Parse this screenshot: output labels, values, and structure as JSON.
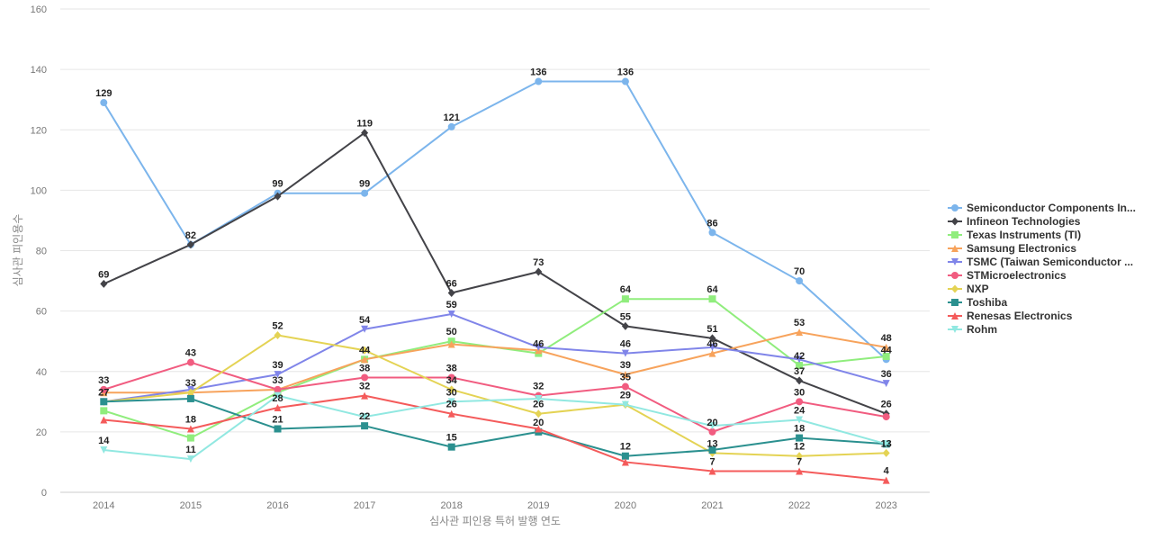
{
  "chart_data": {
    "type": "line",
    "title": "",
    "xlabel": "심사관 피인용 특허 발행 연도",
    "ylabel": "심사관 피인용수",
    "x": [
      "2014",
      "2015",
      "2016",
      "2017",
      "2018",
      "2019",
      "2020",
      "2021",
      "2022",
      "2023"
    ],
    "ylim": [
      0,
      160
    ],
    "yticks": [
      0,
      20,
      40,
      60,
      80,
      100,
      120,
      140,
      160
    ],
    "grid": true,
    "legend_position": "right",
    "series": [
      {
        "name": "Semiconductor Components In...",
        "color": "#7cb5ec",
        "marker": "circle",
        "values": [
          129,
          82,
          99,
          99,
          121,
          136,
          136,
          86,
          70,
          44
        ]
      },
      {
        "name": "Infineon Technologies",
        "color": "#434348",
        "marker": "diamond",
        "values": [
          69,
          82,
          98,
          119,
          66,
          73,
          55,
          51,
          37,
          26
        ]
      },
      {
        "name": "Texas Instruments (TI)",
        "color": "#90ed7d",
        "marker": "square",
        "values": [
          27,
          18,
          33,
          44,
          50,
          46,
          64,
          64,
          42,
          45
        ]
      },
      {
        "name": "Samsung Electronics",
        "color": "#f7a35c",
        "marker": "triangle",
        "values": [
          33,
          33,
          34,
          44,
          49,
          47,
          39,
          46,
          53,
          48
        ]
      },
      {
        "name": "TSMC (Taiwan Semiconductor ...",
        "color": "#8085e9",
        "marker": "triangle-down",
        "values": [
          30,
          34,
          39,
          54,
          59,
          48,
          46,
          48,
          44,
          36
        ]
      },
      {
        "name": "STMicroelectronics",
        "color": "#f15c80",
        "marker": "circle",
        "values": [
          34,
          43,
          34,
          38,
          38,
          32,
          35,
          20,
          30,
          25
        ]
      },
      {
        "name": "NXP",
        "color": "#e4d354",
        "marker": "diamond",
        "values": [
          30,
          33,
          52,
          47,
          34,
          26,
          29,
          13,
          12,
          13
        ]
      },
      {
        "name": "Toshiba",
        "color": "#2b908f",
        "marker": "square",
        "values": [
          30,
          31,
          21,
          22,
          15,
          20,
          12,
          14,
          18,
          16
        ]
      },
      {
        "name": "Renesas Electronics",
        "color": "#f45b5b",
        "marker": "triangle",
        "values": [
          24,
          21,
          28,
          32,
          26,
          21,
          10,
          7,
          7,
          4
        ]
      },
      {
        "name": "Rohm",
        "color": "#91e8e1",
        "marker": "triangle-down",
        "values": [
          14,
          11,
          32,
          25,
          30,
          31,
          29,
          22,
          24,
          16
        ]
      }
    ],
    "data_labels": [
      {
        "x": "2014",
        "y": 129,
        "text": "129"
      },
      {
        "x": "2014",
        "y": 69,
        "text": "69"
      },
      {
        "x": "2014",
        "y": 34,
        "text": "33"
      },
      {
        "x": "2014",
        "y": 30,
        "text": "27"
      },
      {
        "x": "2014",
        "y": 14,
        "text": "14"
      },
      {
        "x": "2015",
        "y": 82,
        "text": "82"
      },
      {
        "x": "2015",
        "y": 43,
        "text": "43"
      },
      {
        "x": "2015",
        "y": 33,
        "text": "33"
      },
      {
        "x": "2015",
        "y": 21,
        "text": "18"
      },
      {
        "x": "2015",
        "y": 11,
        "text": "11"
      },
      {
        "x": "2016",
        "y": 99,
        "text": "99"
      },
      {
        "x": "2016",
        "y": 52,
        "text": "52"
      },
      {
        "x": "2016",
        "y": 39,
        "text": "39"
      },
      {
        "x": "2016",
        "y": 34,
        "text": "33"
      },
      {
        "x": "2016",
        "y": 28,
        "text": "28"
      },
      {
        "x": "2016",
        "y": 21,
        "text": "21"
      },
      {
        "x": "2017",
        "y": 119,
        "text": "119"
      },
      {
        "x": "2017",
        "y": 99,
        "text": "99"
      },
      {
        "x": "2017",
        "y": 54,
        "text": "54"
      },
      {
        "x": "2017",
        "y": 44,
        "text": "44"
      },
      {
        "x": "2017",
        "y": 38,
        "text": "38"
      },
      {
        "x": "2017",
        "y": 32,
        "text": "32"
      },
      {
        "x": "2017",
        "y": 22,
        "text": "22"
      },
      {
        "x": "2018",
        "y": 121,
        "text": "121"
      },
      {
        "x": "2018",
        "y": 66,
        "text": "66"
      },
      {
        "x": "2018",
        "y": 59,
        "text": "59"
      },
      {
        "x": "2018",
        "y": 50,
        "text": "50"
      },
      {
        "x": "2018",
        "y": 38,
        "text": "38"
      },
      {
        "x": "2018",
        "y": 34,
        "text": "34"
      },
      {
        "x": "2018",
        "y": 30,
        "text": "30"
      },
      {
        "x": "2018",
        "y": 26,
        "text": "26"
      },
      {
        "x": "2018",
        "y": 15,
        "text": "15"
      },
      {
        "x": "2019",
        "y": 136,
        "text": "136"
      },
      {
        "x": "2019",
        "y": 73,
        "text": "73"
      },
      {
        "x": "2019",
        "y": 46,
        "text": "46"
      },
      {
        "x": "2019",
        "y": 32,
        "text": "32"
      },
      {
        "x": "2019",
        "y": 26,
        "text": "26"
      },
      {
        "x": "2019",
        "y": 20,
        "text": "20"
      },
      {
        "x": "2020",
        "y": 136,
        "text": "136"
      },
      {
        "x": "2020",
        "y": 64,
        "text": "64"
      },
      {
        "x": "2020",
        "y": 55,
        "text": "55"
      },
      {
        "x": "2020",
        "y": 46,
        "text": "46"
      },
      {
        "x": "2020",
        "y": 39,
        "text": "39"
      },
      {
        "x": "2020",
        "y": 35,
        "text": "35"
      },
      {
        "x": "2020",
        "y": 29,
        "text": "29"
      },
      {
        "x": "2020",
        "y": 12,
        "text": "12"
      },
      {
        "x": "2021",
        "y": 86,
        "text": "86"
      },
      {
        "x": "2021",
        "y": 64,
        "text": "64"
      },
      {
        "x": "2021",
        "y": 51,
        "text": "51"
      },
      {
        "x": "2021",
        "y": 46,
        "text": "46"
      },
      {
        "x": "2021",
        "y": 20,
        "text": "20"
      },
      {
        "x": "2021",
        "y": 13,
        "text": "13"
      },
      {
        "x": "2021",
        "y": 7,
        "text": "7"
      },
      {
        "x": "2022",
        "y": 70,
        "text": "70"
      },
      {
        "x": "2022",
        "y": 53,
        "text": "53"
      },
      {
        "x": "2022",
        "y": 42,
        "text": "42"
      },
      {
        "x": "2022",
        "y": 37,
        "text": "37"
      },
      {
        "x": "2022",
        "y": 30,
        "text": "30"
      },
      {
        "x": "2022",
        "y": 24,
        "text": "24"
      },
      {
        "x": "2022",
        "y": 18,
        "text": "18"
      },
      {
        "x": "2022",
        "y": 12,
        "text": "12"
      },
      {
        "x": "2022",
        "y": 7,
        "text": "7"
      },
      {
        "x": "2023",
        "y": 48,
        "text": "48"
      },
      {
        "x": "2023",
        "y": 44,
        "text": "44"
      },
      {
        "x": "2023",
        "y": 36,
        "text": "36"
      },
      {
        "x": "2023",
        "y": 26,
        "text": "26"
      },
      {
        "x": "2023",
        "y": 13,
        "text": "13"
      },
      {
        "x": "2023",
        "y": 4,
        "text": "4"
      }
    ]
  }
}
